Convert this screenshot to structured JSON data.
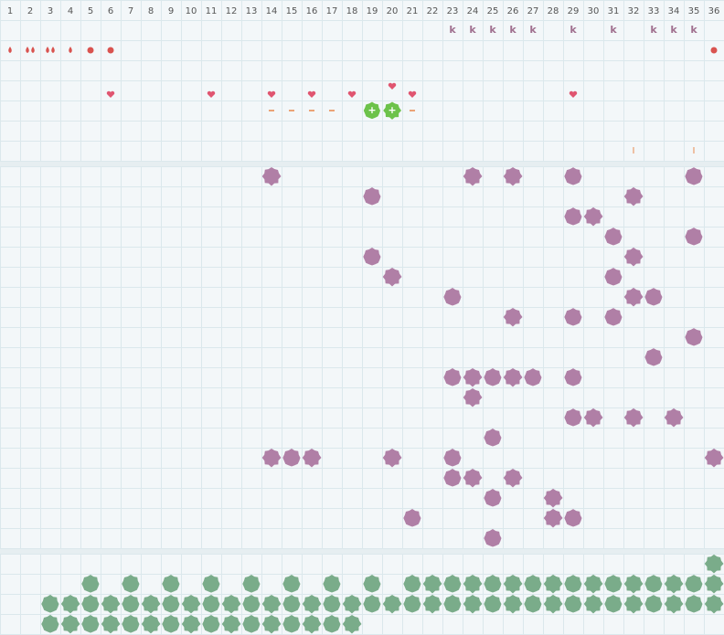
{
  "header": {
    "columns": [
      1,
      2,
      3,
      4,
      5,
      6,
      7,
      8,
      9,
      10,
      11,
      12,
      13,
      14,
      15,
      16,
      17,
      18,
      19,
      20,
      21,
      22,
      23,
      24,
      25,
      26,
      27,
      28,
      29,
      30,
      31,
      32,
      33,
      34,
      35,
      36
    ]
  },
  "top": {
    "k_marks": {
      "text": "k",
      "columns": [
        23,
        24,
        25,
        26,
        27,
        29,
        31,
        33,
        34,
        35
      ]
    },
    "plus_marks": {
      "text": "+",
      "columns": [
        19,
        20
      ]
    },
    "bar_marks": {
      "text": "I",
      "columns": [
        32,
        35
      ]
    }
  },
  "middle": {
    "rows": [
      [
        14,
        24,
        26,
        29,
        35
      ],
      [
        19,
        32
      ],
      [
        29,
        30
      ],
      [
        31,
        35
      ],
      [
        19,
        32
      ],
      [
        20,
        31
      ],
      [
        23,
        32,
        33
      ],
      [
        26,
        29,
        31
      ],
      [
        35
      ],
      [
        33
      ],
      [
        23,
        24,
        25,
        26,
        27,
        29
      ],
      [
        24
      ],
      [
        29,
        30,
        32,
        34
      ],
      [
        25
      ],
      [
        14,
        15,
        16,
        20,
        23,
        36
      ],
      [
        23,
        24,
        26
      ],
      [
        25,
        28
      ],
      [
        21,
        28,
        29
      ],
      [
        25
      ]
    ]
  },
  "bottom": {
    "rows": [
      [
        36
      ],
      [
        5,
        7,
        9,
        11,
        13,
        15,
        17,
        19,
        21,
        22,
        23,
        24,
        25,
        26,
        27,
        28,
        29,
        30,
        31,
        32,
        33,
        34,
        35,
        36
      ],
      [
        3,
        4,
        5,
        6,
        7,
        8,
        9,
        10,
        11,
        12,
        13,
        14,
        15,
        16,
        17,
        18,
        19,
        20,
        21,
        22,
        23,
        24,
        25,
        26,
        27,
        28,
        29,
        30,
        31,
        32,
        33,
        34,
        35,
        36
      ],
      [
        3,
        4,
        5,
        6,
        7,
        8,
        9,
        10,
        11,
        12,
        13,
        14,
        15,
        16,
        17,
        18
      ]
    ]
  }
}
